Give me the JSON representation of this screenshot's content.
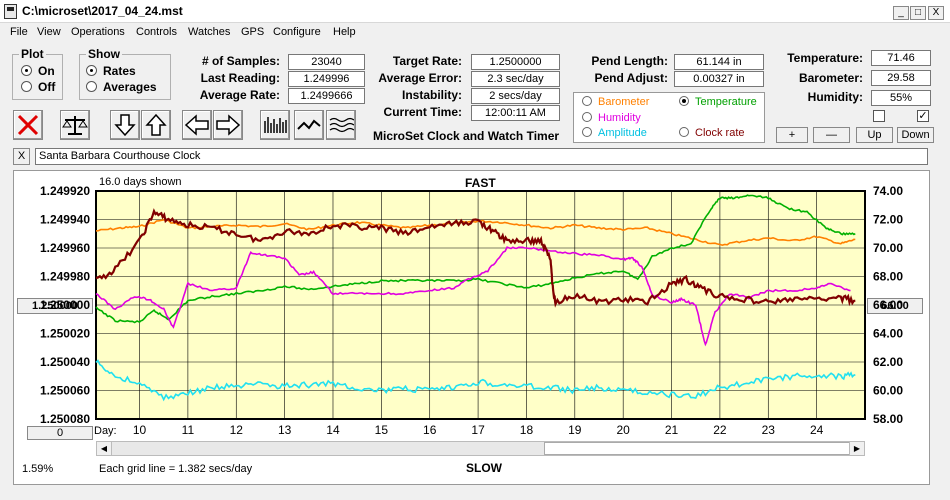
{
  "window": {
    "title": "C:\\microset\\2017_04_24.mst",
    "min": "_",
    "max": "□",
    "close": "X"
  },
  "menu": [
    "File",
    "View",
    "Operations",
    "Controls",
    "Watches",
    "GPS",
    "Configure",
    "Help"
  ],
  "plot_group": {
    "title": "Plot",
    "options": [
      "On",
      "Off"
    ],
    "selected": "On"
  },
  "show_group": {
    "title": "Show",
    "options": [
      "Rates",
      "Averages"
    ],
    "selected": "Rates"
  },
  "stats": {
    "samples_label": "# of Samples:",
    "samples": "23040",
    "last_reading_label": "Last Reading:",
    "last_reading": "1.249996",
    "average_rate_label": "Average Rate:",
    "average_rate": "1.2499666",
    "target_rate_label": "Target Rate:",
    "target_rate": "1.2500000",
    "average_error_label": "Average Error:",
    "average_error": "2.3 sec/day",
    "instability_label": "Instability:",
    "instability": "2 secs/day",
    "current_time_label": "Current Time:",
    "current_time": "12:00:11 AM",
    "pend_length_label": "Pend Length:",
    "pend_length": "61.144 in",
    "pend_adjust_label": "Pend Adjust:",
    "pend_adjust": "0.00327 in",
    "temperature_label": "Temperature:",
    "temperature": "71.46",
    "barometer_label": "Barometer:",
    "barometer": "29.58",
    "humidity_label": "Humidity:",
    "humidity": "55%"
  },
  "app_subtitle": "MicroSet Clock and Watch Timer",
  "legend": {
    "options": [
      {
        "label": "Barometer",
        "color": "#ff8000",
        "selected": false
      },
      {
        "label": "Temperature",
        "color": "#00a000",
        "selected": true
      },
      {
        "label": "Humidity",
        "color": "#e000e0",
        "selected": false
      },
      {
        "label": "Clock rate",
        "color": "#800000",
        "selected": false
      },
      {
        "label": "Amplitude",
        "color": "#00c0e0",
        "selected": false
      }
    ]
  },
  "small_buttons": [
    "+",
    "—",
    "Up",
    "Down"
  ],
  "checkboxes": [
    {
      "checked": false
    },
    {
      "checked": true
    }
  ],
  "clock_name": "Santa Barbara Courthouse Clock",
  "clock_close": "X",
  "chart_data": {
    "type": "line",
    "days_shown": "16.0 days shown",
    "top_label": "FAST",
    "bottom_label": "SLOW",
    "grid_note": "Each grid line = 1.382 secs/day",
    "percent": "1.59%",
    "left_button": "1.250000",
    "right_button": "66.00",
    "scroll_value": "0",
    "x_label": "Day:",
    "x_ticks": [
      "10",
      "11",
      "12",
      "13",
      "14",
      "15",
      "16",
      "17",
      "18",
      "19",
      "20",
      "21",
      "22",
      "23",
      "24"
    ],
    "y_left_ticks": [
      "1.249920",
      "1.249940",
      "1.249960",
      "1.249980",
      "1.250000",
      "1.250020",
      "1.250040",
      "1.250060",
      "1.250080"
    ],
    "y_right_ticks": [
      "74.00",
      "72.00",
      "70.00",
      "68.00",
      "66.00",
      "64.00",
      "62.00",
      "60.00",
      "58.00"
    ],
    "y_left_range": [
      1.24992,
      1.25008
    ],
    "y_right_range": [
      58,
      74
    ],
    "x_range": [
      9.1,
      25.0
    ],
    "series": [
      {
        "name": "Barometer",
        "color": "#ff8000",
        "x": [
          9.1,
          9.6,
          10.0,
          10.5,
          11.0,
          11.5,
          12.0,
          12.5,
          13.0,
          13.5,
          14.0,
          14.5,
          15.0,
          15.5,
          16.0,
          16.5,
          17.0,
          17.5,
          18.0,
          18.5,
          19.0,
          19.5,
          20.0,
          20.5,
          21.0,
          21.5,
          22.0,
          22.5,
          23.0,
          23.5,
          24.0,
          24.5,
          24.8
        ],
        "y": [
          1.249948,
          1.249946,
          1.249945,
          1.24994,
          1.249946,
          1.249945,
          1.249944,
          1.249945,
          1.249943,
          1.249947,
          1.249944,
          1.249942,
          1.249944,
          1.249946,
          1.249944,
          1.249943,
          1.249941,
          1.249942,
          1.249944,
          1.249946,
          1.249944,
          1.249946,
          1.249947,
          1.249946,
          1.24995,
          1.249954,
          1.249958,
          1.249955,
          1.249953,
          1.249955,
          1.249952,
          1.249957,
          1.249954
        ]
      },
      {
        "name": "Temperature",
        "color": "#00b000",
        "x": [
          9.1,
          9.5,
          10.0,
          10.3,
          10.6,
          11.0,
          11.5,
          12.0,
          12.5,
          13.0,
          13.5,
          14.0,
          14.5,
          15.0,
          15.5,
          16.0,
          16.5,
          17.0,
          17.5,
          18.0,
          18.5,
          19.0,
          19.5,
          20.0,
          20.3,
          20.6,
          21.0,
          21.4,
          21.8,
          22.0,
          22.3,
          22.6,
          23.0,
          23.4,
          23.8,
          24.2,
          24.5,
          24.8
        ],
        "y": [
          1.250002,
          1.250011,
          1.250012,
          1.250004,
          1.25001,
          1.249997,
          1.249994,
          1.249992,
          1.24999,
          1.249987,
          1.249989,
          1.249987,
          1.249985,
          1.249983,
          1.249983,
          1.249983,
          1.249983,
          1.249982,
          1.249985,
          1.249988,
          1.249985,
          1.249981,
          1.249978,
          1.249976,
          1.249982,
          1.249966,
          1.24996,
          1.249957,
          1.249933,
          1.249925,
          1.249925,
          1.249923,
          1.249925,
          1.249932,
          1.249935,
          1.249946,
          1.24995,
          1.24995
        ]
      },
      {
        "name": "Humidity",
        "color": "#e000e0",
        "x": [
          9.1,
          9.5,
          9.9,
          10.2,
          10.5,
          10.7,
          11.0,
          11.5,
          12.0,
          12.3,
          12.6,
          13.0,
          13.3,
          13.6,
          14.0,
          14.5,
          15.0,
          15.5,
          16.0,
          16.5,
          16.8,
          17.2,
          17.6,
          18.0,
          18.5,
          19.0,
          19.5,
          20.0,
          20.2,
          20.4,
          20.6,
          21.0,
          21.2,
          21.5,
          21.7,
          21.9,
          22.2,
          22.6,
          23.0,
          23.5,
          24.0,
          24.3,
          24.7
        ],
        "y": [
          1.249992,
          1.250003,
          1.249994,
          1.249996,
          1.250003,
          1.250016,
          1.249985,
          1.24999,
          1.249988,
          1.249963,
          1.249965,
          1.249967,
          1.249979,
          1.249977,
          1.249992,
          1.249992,
          1.249992,
          1.249992,
          1.24999,
          1.249988,
          1.249982,
          1.249976,
          1.24996,
          1.24996,
          1.249962,
          1.249964,
          1.249965,
          1.249968,
          1.249967,
          1.249974,
          1.249993,
          1.249998,
          1.249996,
          1.25,
          1.250028,
          1.250005,
          1.249992,
          1.249995,
          1.24999,
          1.24999,
          1.249988,
          1.249985,
          1.24999
        ]
      },
      {
        "name": "Clock rate",
        "color": "#800000",
        "x": [
          9.1,
          9.5,
          10.0,
          10.3,
          10.6,
          11.0,
          11.5,
          12.0,
          12.5,
          13.0,
          13.5,
          14.0,
          14.5,
          15.0,
          15.5,
          16.0,
          16.5,
          17.0,
          17.3,
          17.6,
          18.0,
          18.3,
          18.5,
          18.55,
          18.6,
          19.0,
          19.5,
          20.0,
          20.5,
          21.0,
          21.3,
          21.6,
          22.0,
          22.5,
          23.0,
          23.5,
          24.0,
          24.5,
          24.8
        ],
        "y": [
          1.249983,
          1.249975,
          1.249955,
          1.249935,
          1.24994,
          1.249944,
          1.249946,
          1.24995,
          1.249955,
          1.249948,
          1.24995,
          1.249944,
          1.249945,
          1.249946,
          1.24995,
          1.249945,
          1.249943,
          1.249941,
          1.249948,
          1.249955,
          1.249955,
          1.249955,
          1.249968,
          1.24999,
          1.249998,
          1.249993,
          1.249998,
          1.249996,
          1.249998,
          1.249985,
          1.249982,
          1.249988,
          1.249994,
          1.249996,
          1.249998,
          1.249996,
          1.249996,
          1.249995,
          1.249997
        ]
      },
      {
        "name": "Amplitude",
        "color": "#20e0f0",
        "x": [
          9.1,
          9.5,
          10.0,
          10.5,
          11.0,
          11.5,
          12.0,
          12.5,
          13.0,
          13.5,
          14.0,
          14.5,
          15.0,
          15.5,
          16.0,
          16.5,
          17.0,
          17.5,
          18.0,
          18.5,
          19.0,
          19.5,
          20.0,
          20.5,
          21.0,
          21.5,
          22.0,
          22.5,
          23.0,
          23.5,
          24.0,
          24.5,
          24.8
        ],
        "y": [
          1.25004,
          1.25005,
          1.250055,
          1.250065,
          1.250062,
          1.250058,
          1.250057,
          1.250056,
          1.250057,
          1.250056,
          1.250055,
          1.250058,
          1.25006,
          1.250059,
          1.25006,
          1.250058,
          1.250054,
          1.250056,
          1.250057,
          1.250058,
          1.25006,
          1.250058,
          1.25006,
          1.250061,
          1.250063,
          1.250064,
          1.250058,
          1.250055,
          1.250052,
          1.25005,
          1.250049,
          1.25005,
          1.250049
        ]
      }
    ]
  }
}
